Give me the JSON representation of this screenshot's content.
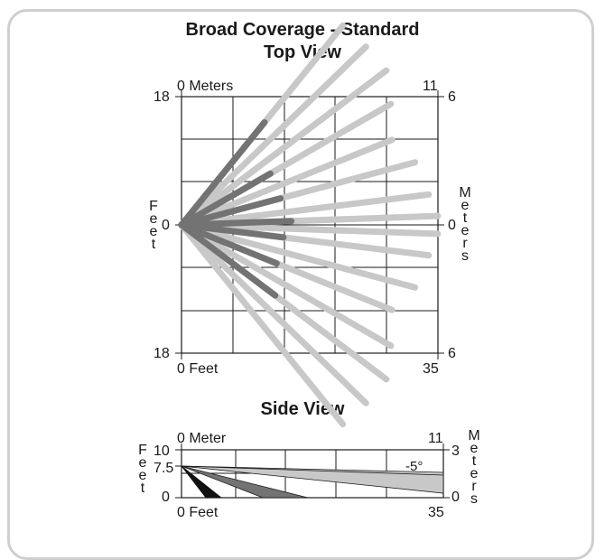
{
  "title": "Broad Coverage - Standard",
  "top_view": {
    "subtitle": "Top View",
    "left_axis_label": "Feet",
    "right_axis_label": "Meters",
    "top_scale_label": "0 Meters",
    "bottom_scale_label": "0 Feet",
    "left_ticks": [
      "18",
      "0",
      "18"
    ],
    "right_ticks": [
      "6",
      "0",
      "6"
    ],
    "top_right_value": "11",
    "bottom_right_value": "35",
    "colors": {
      "near": "#737373",
      "far": "#c8c8c8",
      "grid": "#1a1a1a"
    },
    "beams": [
      {
        "angle": -51,
        "near": 18,
        "far": 35
      },
      {
        "angle": -44,
        "near": 0,
        "far": 35
      },
      {
        "angle": -37,
        "near": 0,
        "far": 35
      },
      {
        "angle": -30,
        "near": 14,
        "far": 33
      },
      {
        "angle": -22,
        "near": 0,
        "far": 31
      },
      {
        "angle": -15,
        "near": 14,
        "far": 33
      },
      {
        "angle": -7,
        "near": 0,
        "far": 34
      },
      {
        "angle": -2,
        "near": 15,
        "far": 35
      },
      {
        "angle": 2,
        "near": 0,
        "far": 35
      },
      {
        "angle": 7,
        "near": 14,
        "far": 34
      },
      {
        "angle": 15,
        "near": 0,
        "far": 33
      },
      {
        "angle": 22,
        "near": 14,
        "far": 31
      },
      {
        "angle": 30,
        "near": 0,
        "far": 33
      },
      {
        "angle": 37,
        "near": 16,
        "far": 35
      },
      {
        "angle": 44,
        "near": 0,
        "far": 35
      },
      {
        "angle": 51,
        "near": 0,
        "far": 35
      }
    ]
  },
  "side_view": {
    "subtitle": "Side View",
    "left_axis_label": "Feet",
    "right_axis_label": "Meters",
    "top_scale_label": "0 Meter",
    "bottom_scale_label": "0 Feet",
    "left_ticks": [
      "10",
      "7.5",
      "0"
    ],
    "right_ticks": [
      "3",
      "0"
    ],
    "top_right_value": "11",
    "bottom_right_value": "35",
    "angle_label": "-5°",
    "colors": {
      "near": "#111111",
      "mid": "#737373",
      "far": "#c8c8c8"
    }
  }
}
